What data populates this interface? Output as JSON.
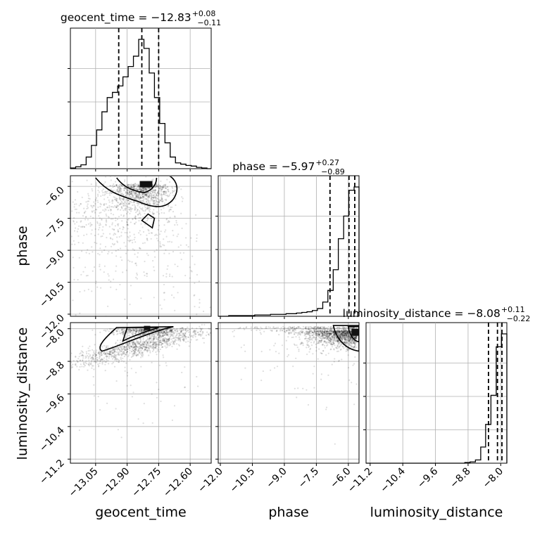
{
  "chart_data": {
    "type": "corner",
    "parameters": [
      "geocent_time",
      "phase",
      "luminosity_distance"
    ],
    "titles": [
      {
        "param": "geocent_time",
        "prefix": "geocent_time = ",
        "median": "−12.83",
        "plus": "+0.08",
        "minus": "−0.11"
      },
      {
        "param": "phase",
        "prefix": "phase = ",
        "median": "−5.97",
        "plus": "+0.27",
        "minus": "−0.89"
      },
      {
        "param": "luminosity_distance",
        "prefix": "luminosity_distance = ",
        "median": "−8.08",
        "plus": "+0.11",
        "minus": "−0.22"
      }
    ],
    "ranges": {
      "geocent_time": [
        -13.17,
        -12.5
      ],
      "phase": [
        -12.1,
        -5.5
      ],
      "luminosity_distance": [
        -11.3,
        -7.85
      ]
    },
    "ticks": {
      "geocent_time": {
        "values": [
          -13.05,
          -12.9,
          -12.75,
          -12.6
        ],
        "labels": [
          "−13.05",
          "−12.90",
          "−12.75",
          "−12.60"
        ]
      },
      "phase": {
        "values": [
          -12.0,
          -10.5,
          -9.0,
          -7.5,
          -6.0
        ],
        "labels": [
          "−12.0",
          "−10.5",
          "−9.0",
          "−7.5",
          "−6.0"
        ]
      },
      "luminosity_distance": {
        "values": [
          -11.2,
          -10.4,
          -9.6,
          -8.8,
          -8.0
        ],
        "labels": [
          "−11.2",
          "−10.4",
          "−9.6",
          "−8.8",
          "−8.0"
        ]
      }
    },
    "quantiles": {
      "geocent_time": [
        -12.94,
        -12.83,
        -12.75
      ],
      "phase": [
        -6.86,
        -5.97,
        -5.7
      ],
      "luminosity_distance": [
        -8.3,
        -8.08,
        -7.97
      ]
    },
    "histograms": {
      "geocent_time": {
        "edges": [
          -13.17,
          -13.145,
          -13.12,
          -13.095,
          -13.07,
          -13.045,
          -13.02,
          -12.995,
          -12.97,
          -12.945,
          -12.92,
          -12.895,
          -12.87,
          -12.845,
          -12.82,
          -12.795,
          -12.77,
          -12.745,
          -12.72,
          -12.695,
          -12.67,
          -12.645,
          -12.62,
          -12.595,
          -12.57,
          -12.545,
          -12.52,
          -12.5
        ],
        "counts": [
          1,
          3,
          6,
          18,
          36,
          60,
          88,
          110,
          118,
          128,
          142,
          158,
          174,
          200,
          186,
          148,
          110,
          70,
          40,
          18,
          9,
          7,
          5,
          4,
          2,
          1,
          0
        ]
      },
      "phase": {
        "edges": [
          -12.1,
          -11.86,
          -11.61,
          -11.37,
          -11.12,
          -10.88,
          -10.63,
          -10.39,
          -10.14,
          -9.9,
          -9.65,
          -9.41,
          -9.16,
          -8.92,
          -8.67,
          -8.43,
          -8.18,
          -7.94,
          -7.69,
          -7.45,
          -7.2,
          -6.96,
          -6.71,
          -6.47,
          -6.22,
          -5.98,
          -5.73,
          -5.5
        ],
        "counts": [
          0,
          0,
          1,
          1,
          1,
          1,
          1,
          2,
          2,
          2,
          3,
          3,
          3,
          4,
          4,
          5,
          6,
          7,
          9,
          12,
          22,
          40,
          72,
          120,
          155,
          195,
          200
        ]
      },
      "luminosity_distance": {
        "edges": [
          -11.3,
          -11.17,
          -11.04,
          -10.92,
          -10.79,
          -10.66,
          -10.53,
          -10.41,
          -10.28,
          -10.15,
          -10.02,
          -9.9,
          -9.77,
          -9.64,
          -9.51,
          -9.39,
          -9.26,
          -9.13,
          -9.0,
          -8.88,
          -8.75,
          -8.62,
          -8.49,
          -8.37,
          -8.24,
          -8.11,
          -7.98,
          -7.85
        ],
        "counts": [
          0,
          0,
          0,
          0,
          0,
          0,
          0,
          0,
          0,
          0,
          0,
          0,
          0,
          0,
          0,
          0,
          0,
          0,
          0,
          1,
          2,
          5,
          25,
          60,
          105,
          180,
          200
        ]
      }
    },
    "grid": true
  }
}
